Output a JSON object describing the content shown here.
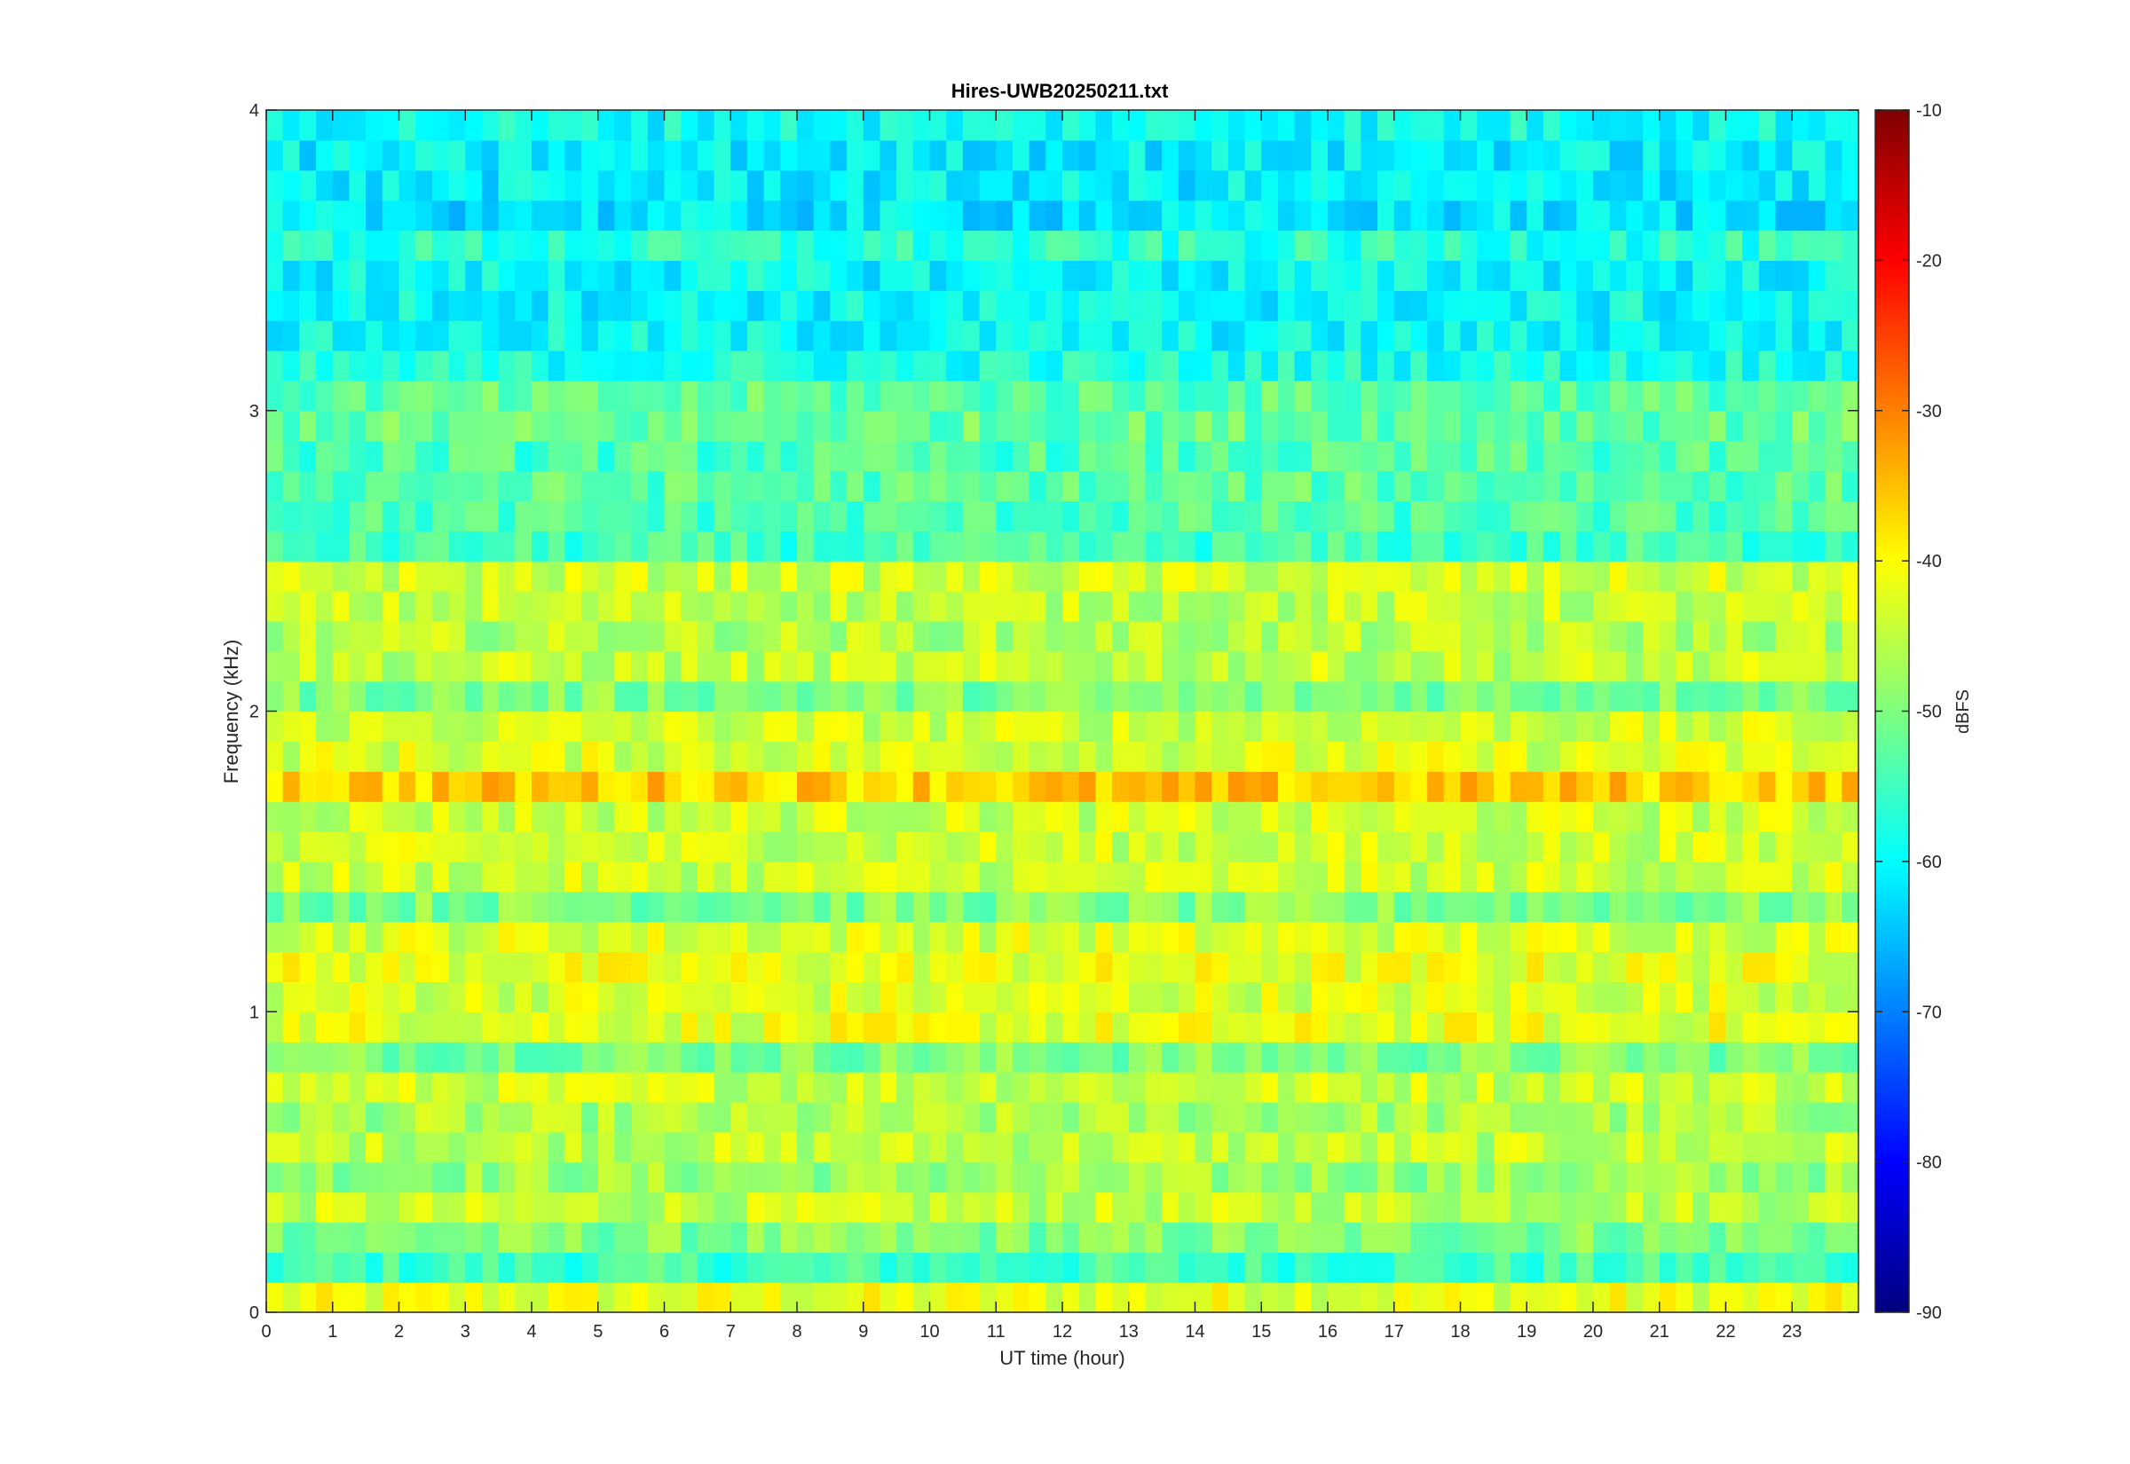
{
  "chart_data": {
    "type": "heatmap",
    "title": "Hires-UWB20250211.txt",
    "xlabel": "UT time (hour)",
    "ylabel": "Frequency (kHz)",
    "xlim": [
      0,
      24
    ],
    "ylim": [
      0,
      4
    ],
    "x_ticks": [
      "0",
      "1",
      "2",
      "3",
      "4",
      "5",
      "6",
      "7",
      "8",
      "9",
      "10",
      "11",
      "12",
      "13",
      "14",
      "15",
      "16",
      "17",
      "18",
      "19",
      "20",
      "21",
      "22",
      "23"
    ],
    "y_ticks": [
      "0",
      "1",
      "2",
      "3",
      "4"
    ],
    "colorbar": {
      "label": "dBFS",
      "clim": [
        -90,
        -10
      ],
      "ticks": [
        "-90",
        "-80",
        "-70",
        "-60",
        "-50",
        "-40",
        "-30",
        "-20",
        "-10"
      ],
      "colormap": "jet"
    },
    "grid": false,
    "band_levels_dBFS": [
      {
        "freq_khz": 0.05,
        "level": -42
      },
      {
        "freq_khz": 0.15,
        "level": -55
      },
      {
        "freq_khz": 0.25,
        "level": -50
      },
      {
        "freq_khz": 0.35,
        "level": -45
      },
      {
        "freq_khz": 0.45,
        "level": -48
      },
      {
        "freq_khz": 0.55,
        "level": -45
      },
      {
        "freq_khz": 0.65,
        "level": -47
      },
      {
        "freq_khz": 0.75,
        "level": -44
      },
      {
        "freq_khz": 0.85,
        "level": -50
      },
      {
        "freq_khz": 0.95,
        "level": -42
      },
      {
        "freq_khz": 1.05,
        "level": -43
      },
      {
        "freq_khz": 1.15,
        "level": -42
      },
      {
        "freq_khz": 1.25,
        "level": -43
      },
      {
        "freq_khz": 1.35,
        "level": -50
      },
      {
        "freq_khz": 1.45,
        "level": -44
      },
      {
        "freq_khz": 1.55,
        "level": -44
      },
      {
        "freq_khz": 1.65,
        "level": -44
      },
      {
        "freq_khz": 1.75,
        "level": -36
      },
      {
        "freq_khz": 1.85,
        "level": -43
      },
      {
        "freq_khz": 1.95,
        "level": -44
      },
      {
        "freq_khz": 2.05,
        "level": -50
      },
      {
        "freq_khz": 2.15,
        "level": -45
      },
      {
        "freq_khz": 2.25,
        "level": -46
      },
      {
        "freq_khz": 2.35,
        "level": -45
      },
      {
        "freq_khz": 2.45,
        "level": -44
      },
      {
        "freq_khz": 2.55,
        "level": -55
      },
      {
        "freq_khz": 2.65,
        "level": -54
      },
      {
        "freq_khz": 2.75,
        "level": -53
      },
      {
        "freq_khz": 2.85,
        "level": -54
      },
      {
        "freq_khz": 2.95,
        "level": -52
      },
      {
        "freq_khz": 3.05,
        "level": -53
      },
      {
        "freq_khz": 3.15,
        "level": -58
      },
      {
        "freq_khz": 3.25,
        "level": -60
      },
      {
        "freq_khz": 3.35,
        "level": -60
      },
      {
        "freq_khz": 3.45,
        "level": -60
      },
      {
        "freq_khz": 3.55,
        "level": -57
      },
      {
        "freq_khz": 3.65,
        "level": -62
      },
      {
        "freq_khz": 3.75,
        "level": -61
      },
      {
        "freq_khz": 3.85,
        "level": -61
      },
      {
        "freq_khz": 3.95,
        "level": -59
      }
    ]
  }
}
